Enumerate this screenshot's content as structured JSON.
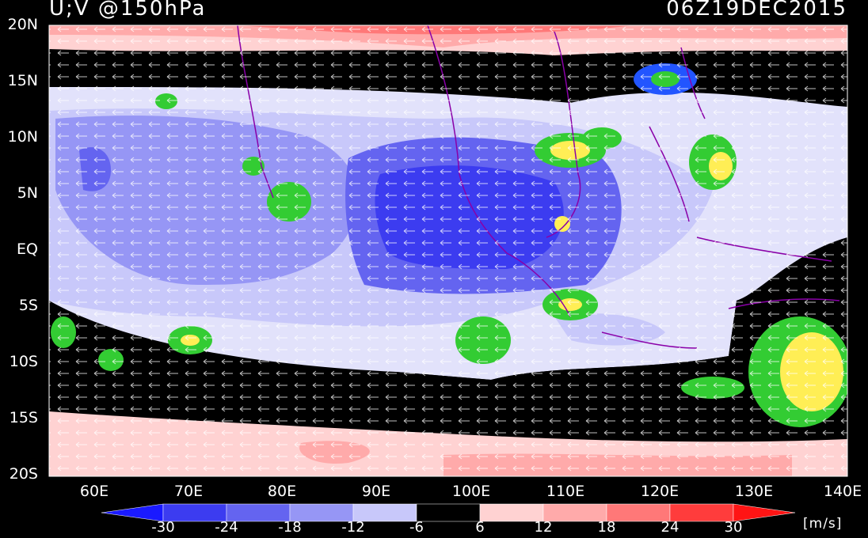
{
  "header": {
    "field_label": "U;V @150hPa",
    "datetime": "06Z19DEC2015"
  },
  "axes": {
    "lat_labels": [
      "20N",
      "15N",
      "10N",
      "5N",
      "EQ",
      "5S",
      "10S",
      "15S",
      "20S"
    ],
    "lon_labels": [
      "60E",
      "70E",
      "80E",
      "90E",
      "100E",
      "110E",
      "120E",
      "130E",
      "140E"
    ]
  },
  "colorbar": {
    "ticks": [
      "-30",
      "-24",
      "-18",
      "-12",
      "-6",
      "6",
      "12",
      "18",
      "24",
      "30"
    ],
    "unit": "[m/s]",
    "colors": [
      "#1a1aff",
      "#3c3cf0",
      "#6464f0",
      "#9696f5",
      "#c8c8fa",
      "#e2e2fb",
      "#000000",
      "#ffd2d2",
      "#ffaaaa",
      "#ff7878",
      "#ff3c3c",
      "#ff1414"
    ]
  },
  "map": {
    "extent": {
      "lon_min": 55,
      "lon_max": 140,
      "lat_min": -20,
      "lat_max": 20
    },
    "wind_direction": "easterly"
  }
}
